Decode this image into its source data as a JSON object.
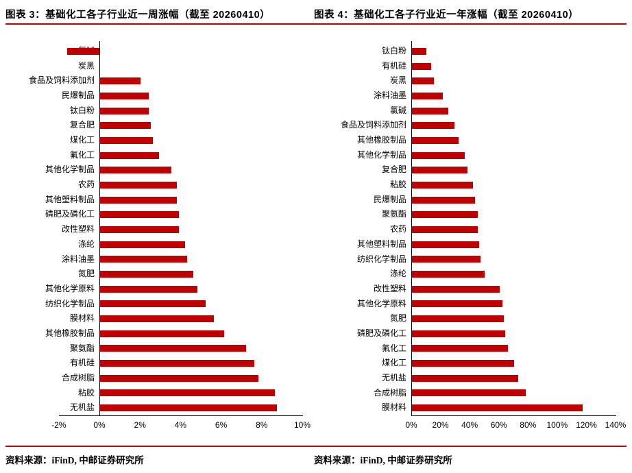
{
  "accent_color": "#c00000",
  "footer": {
    "source_label": "资料来源：",
    "source_text": "iFinD, 中邮证券研究所"
  },
  "chart_data": [
    {
      "type": "bar",
      "orientation": "horizontal",
      "title": "图表 3：基础化工各子行业近一周涨幅（截至 20260410）",
      "unit": "%",
      "bar_color": "#c00000",
      "legend": "none",
      "grid": "off",
      "xlim": [
        -2,
        10
      ],
      "xticks": [
        -2,
        0,
        2,
        4,
        6,
        8,
        10
      ],
      "xtick_labels": [
        "-2%",
        "0%",
        "2%",
        "4%",
        "6%",
        "8%",
        "10%"
      ],
      "categories": [
        "氯碱",
        "炭黑",
        "食品及饲料添加剂",
        "民爆制品",
        "钛白粉",
        "复合肥",
        "煤化工",
        "氟化工",
        "其他化学制品",
        "农药",
        "其他塑料制品",
        "磷肥及磷化工",
        "改性塑料",
        "涤纶",
        "涂料油墨",
        "氮肥",
        "其他化学原料",
        "纺织化学制品",
        "膜材料",
        "其他橡胶制品",
        "聚氨酯",
        "有机硅",
        "合成树脂",
        "粘胶",
        "无机盐"
      ],
      "values": [
        -1.6,
        0.0,
        2.0,
        2.4,
        2.4,
        2.5,
        2.6,
        2.9,
        3.5,
        3.8,
        3.8,
        3.9,
        3.9,
        4.2,
        4.3,
        4.6,
        4.8,
        5.2,
        5.6,
        6.1,
        7.2,
        7.6,
        7.8,
        8.6,
        8.7
      ]
    },
    {
      "type": "bar",
      "orientation": "horizontal",
      "title": "图表 4：基础化工各子行业近一年涨幅（截至 20260410）",
      "unit": "%",
      "bar_color": "#c00000",
      "legend": "none",
      "grid": "off",
      "xlim": [
        0,
        140
      ],
      "xticks": [
        0,
        20,
        40,
        60,
        80,
        100,
        120,
        140
      ],
      "xtick_labels": [
        "0%",
        "20%",
        "40%",
        "60%",
        "80%",
        "100%",
        "120%",
        "140%"
      ],
      "categories": [
        "钛白粉",
        "有机硅",
        "炭黑",
        "涂料油墨",
        "氯碱",
        "食品及饲料添加剂",
        "其他橡胶制品",
        "其他化学制品",
        "复合肥",
        "粘胶",
        "民爆制品",
        "聚氨酯",
        "农药",
        "其他塑料制品",
        "纺织化学制品",
        "涤纶",
        "改性塑料",
        "其他化学原料",
        "氮肥",
        "磷肥及磷化工",
        "氟化工",
        "煤化工",
        "无机盐",
        "合成树脂",
        "膜材料"
      ],
      "values": [
        10,
        13,
        15,
        21,
        25,
        29,
        32,
        36,
        38,
        42,
        43,
        45,
        45,
        46,
        47,
        50,
        60,
        62,
        63,
        64,
        66,
        70,
        73,
        78,
        117
      ]
    }
  ]
}
